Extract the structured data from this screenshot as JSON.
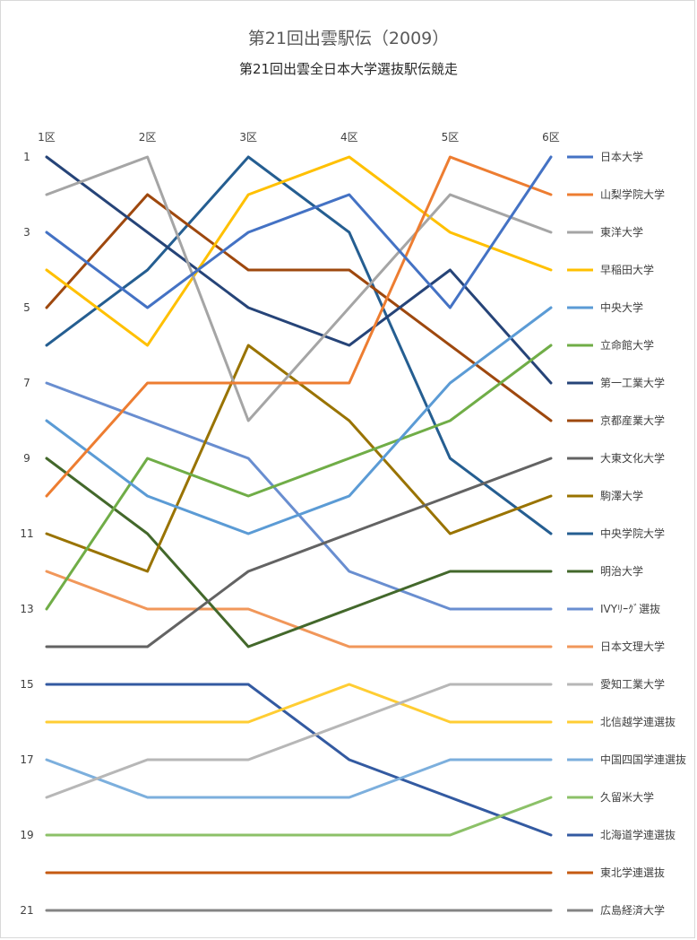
{
  "chart_data": {
    "type": "line",
    "title": "第21回出雲駅伝（2009）",
    "subtitle": "第21回出雲全日本大学選抜駅伝競走",
    "categories": [
      "1区",
      "2区",
      "3区",
      "4区",
      "5区",
      "6区"
    ],
    "ylim": [
      1,
      21
    ],
    "y_reversed": true,
    "y_ticks": [
      "1",
      "3",
      "5",
      "7",
      "9",
      "11",
      "13",
      "15",
      "17",
      "19",
      "21"
    ],
    "grid": false,
    "legend_position": "right",
    "series": [
      {
        "name": "日本大学",
        "color": "#4472C4",
        "values": [
          3,
          5,
          3,
          2,
          5,
          1
        ]
      },
      {
        "name": "山梨学院大学",
        "color": "#ED7D31",
        "values": [
          10,
          7,
          7,
          7,
          1,
          2
        ]
      },
      {
        "name": "東洋大学",
        "color": "#A5A5A5",
        "values": [
          2,
          1,
          8,
          5,
          2,
          3
        ]
      },
      {
        "name": "早稲田大学",
        "color": "#FFC000",
        "values": [
          4,
          6,
          2,
          1,
          3,
          4
        ]
      },
      {
        "name": "中央大学",
        "color": "#5B9BD5",
        "values": [
          8,
          10,
          11,
          10,
          7,
          5
        ]
      },
      {
        "name": "立命館大学",
        "color": "#70AD47",
        "values": [
          13,
          9,
          10,
          9,
          8,
          6
        ]
      },
      {
        "name": "第一工業大学",
        "color": "#264478",
        "values": [
          1,
          3,
          5,
          6,
          4,
          7
        ]
      },
      {
        "name": "京都産業大学",
        "color": "#9E480E",
        "values": [
          5,
          2,
          4,
          4,
          6,
          8
        ]
      },
      {
        "name": "大東文化大学",
        "color": "#636363",
        "values": [
          14,
          14,
          12,
          11,
          10,
          9
        ]
      },
      {
        "name": "駒澤大学",
        "color": "#997300",
        "values": [
          11,
          12,
          6,
          8,
          11,
          10
        ]
      },
      {
        "name": "中央学院大学",
        "color": "#255E91",
        "values": [
          6,
          4,
          1,
          3,
          9,
          11
        ]
      },
      {
        "name": "明治大学",
        "color": "#43682B",
        "values": [
          9,
          11,
          14,
          13,
          12,
          12
        ]
      },
      {
        "name": "IVYﾘｰｸﾞ選抜",
        "color": "#698ED0",
        "values": [
          7,
          8,
          9,
          12,
          13,
          13
        ]
      },
      {
        "name": "日本文理大学",
        "color": "#F1975A",
        "values": [
          12,
          13,
          13,
          14,
          14,
          14
        ]
      },
      {
        "name": "愛知工業大学",
        "color": "#B7B7B7",
        "values": [
          18,
          17,
          17,
          16,
          15,
          15
        ]
      },
      {
        "name": "北信越学連選抜",
        "color": "#FFCD33",
        "values": [
          16,
          16,
          16,
          15,
          16,
          16
        ]
      },
      {
        "name": "中国四国学連選抜",
        "color": "#7CAFDD",
        "values": [
          17,
          18,
          18,
          18,
          17,
          17
        ]
      },
      {
        "name": "久留米大学",
        "color": "#8CC168",
        "values": [
          19,
          19,
          19,
          19,
          19,
          18
        ]
      },
      {
        "name": "北海道学連選抜",
        "color": "#335AA1",
        "values": [
          15,
          15,
          15,
          17,
          18,
          19
        ]
      },
      {
        "name": "東北学連選抜",
        "color": "#C55A11",
        "values": [
          20,
          20,
          20,
          20,
          20,
          20
        ]
      },
      {
        "name": "広島経済大学",
        "color": "#848484",
        "values": [
          21,
          21,
          21,
          21,
          21,
          21
        ]
      }
    ]
  }
}
